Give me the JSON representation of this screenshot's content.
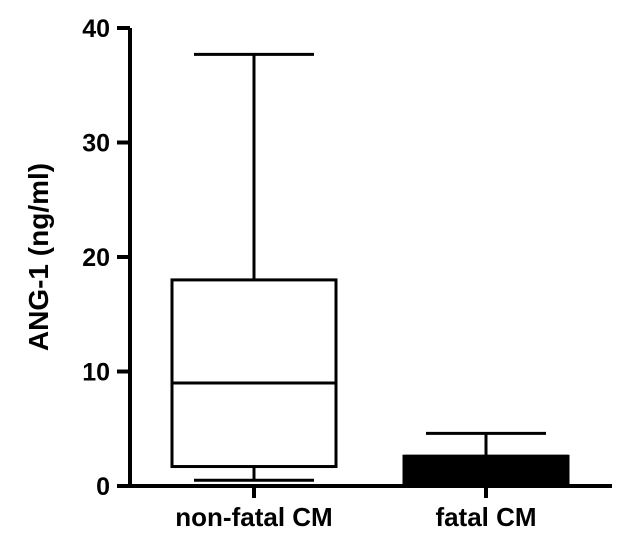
{
  "chart_data": {
    "type": "box",
    "title": "",
    "xlabel": "",
    "ylabel": "ANG-1 (ng/ml)",
    "ylim": [
      0,
      40
    ],
    "yticks": [
      {
        "value": 0,
        "label": "0"
      },
      {
        "value": 10,
        "label": "10"
      },
      {
        "value": 20,
        "label": "20"
      },
      {
        "value": 30,
        "label": "30"
      },
      {
        "value": 40,
        "label": "40"
      }
    ],
    "grid": false,
    "legend": "none",
    "categories": [
      "non-fatal CM",
      "fatal CM"
    ],
    "boxes": [
      {
        "category": "non-fatal CM",
        "min": 0.5,
        "q1": 1.7,
        "median": 9.0,
        "q3": 18.0,
        "max": 37.7,
        "fill": "#ffffff"
      },
      {
        "category": "fatal CM",
        "min": 0.0,
        "q1": 0.0,
        "median": 2.6,
        "q3": 2.6,
        "max": 4.6,
        "fill": "#000000"
      }
    ]
  }
}
